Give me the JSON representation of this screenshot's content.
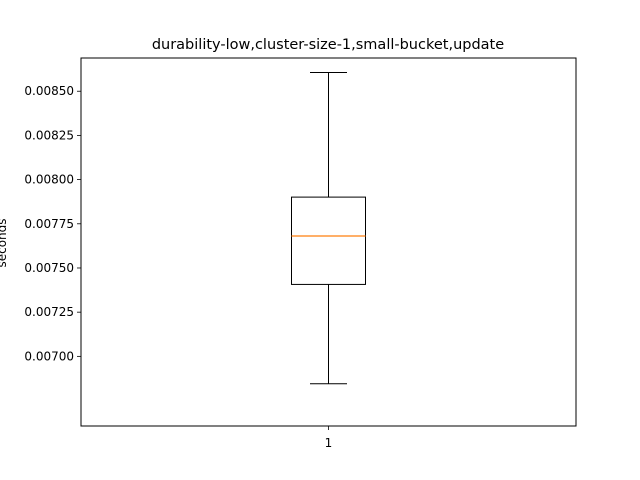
{
  "chart_data": {
    "type": "box",
    "title": "durability-low,cluster-size-1,small-bucket,update",
    "xlabel": "",
    "ylabel": "seconds",
    "categories": [
      "1"
    ],
    "boxes": [
      {
        "label": "1",
        "whisker_low": 0.006845,
        "q1": 0.007407,
        "median": 0.007681,
        "q3": 0.007901,
        "whisker_high": 0.008606
      }
    ],
    "yticks": [
      0.007,
      0.00725,
      0.0075,
      0.00775,
      0.008,
      0.00825,
      0.0085
    ],
    "ytick_labels": [
      "0.00700",
      "0.00725",
      "0.00750",
      "0.00775",
      "0.00800",
      "0.00825",
      "0.00850"
    ],
    "ylim": [
      0.006606,
      0.008688
    ],
    "grid": false,
    "colors": {
      "box": "#000000",
      "median": "#ff7f0e"
    }
  }
}
